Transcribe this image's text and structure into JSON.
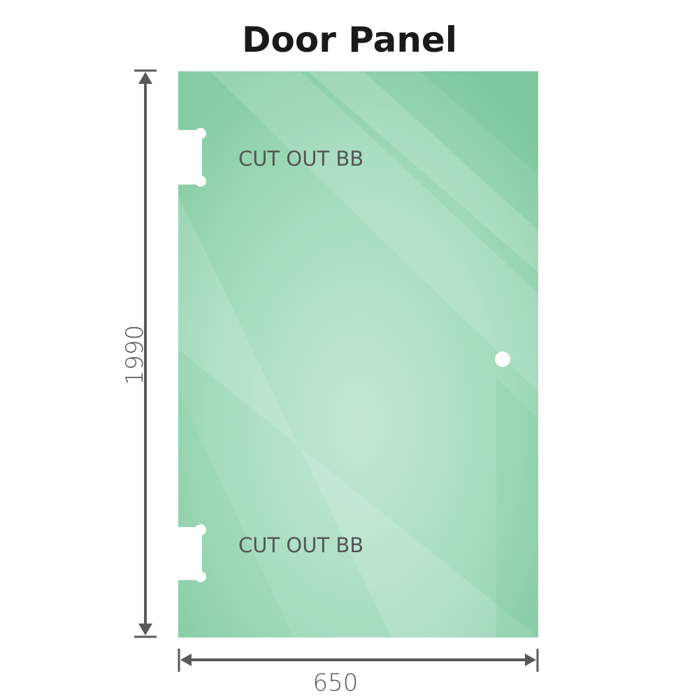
{
  "title": "Door Panel",
  "panel": {
    "height_label": "1990",
    "width_label": "650",
    "cutouts": [
      {
        "label": "CUT OUT BB",
        "position": "top"
      },
      {
        "label": "CUT OUT BB",
        "position": "bottom"
      }
    ],
    "handle_hole": true
  },
  "colors": {
    "glass": "#8fd1ae",
    "glass_light": "#c3e8d4",
    "dimension_line": "#5a5a5a",
    "text": "#555555"
  }
}
